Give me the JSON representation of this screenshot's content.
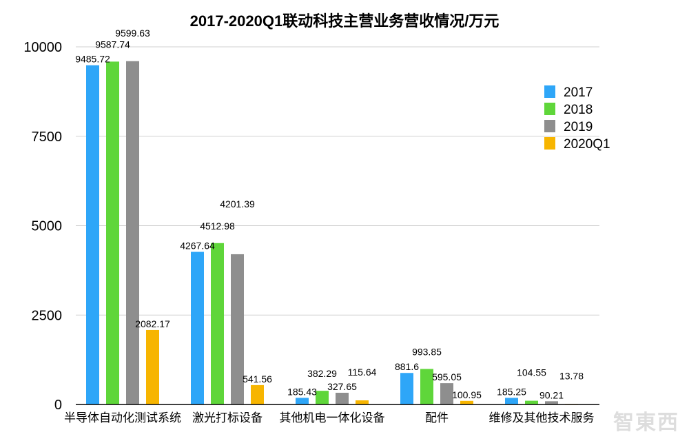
{
  "chart_data": {
    "type": "bar",
    "title": "2017-2020Q1联动科技主营业务营收情况/万元",
    "xlabel": "",
    "ylabel": "",
    "ylim": [
      0,
      10000
    ],
    "yticks": [
      "0",
      "2500",
      "5000",
      "7500",
      "10000"
    ],
    "grid": true,
    "legend_position": "right",
    "categories": [
      "半导体自动化测试系统",
      "激光打标设备",
      "其他机电一体化设备",
      "配件",
      "维修及其他技术服务"
    ],
    "series": [
      {
        "name": "2017",
        "color": "#2ea6f8",
        "values": [
          9485.72,
          4267.64,
          185.43,
          881.6,
          185.25
        ]
      },
      {
        "name": "2018",
        "color": "#5fd63a",
        "values": [
          9587.74,
          4512.98,
          382.29,
          993.85,
          104.55
        ]
      },
      {
        "name": "2019",
        "color": "#8e8e8e",
        "values": [
          9599.63,
          4201.39,
          327.65,
          595.05,
          90.21
        ]
      },
      {
        "name": "2020Q1",
        "color": "#f7b500",
        "values": [
          2082.17,
          541.56,
          115.64,
          100.95,
          13.78
        ]
      }
    ]
  },
  "watermark": "智东西"
}
